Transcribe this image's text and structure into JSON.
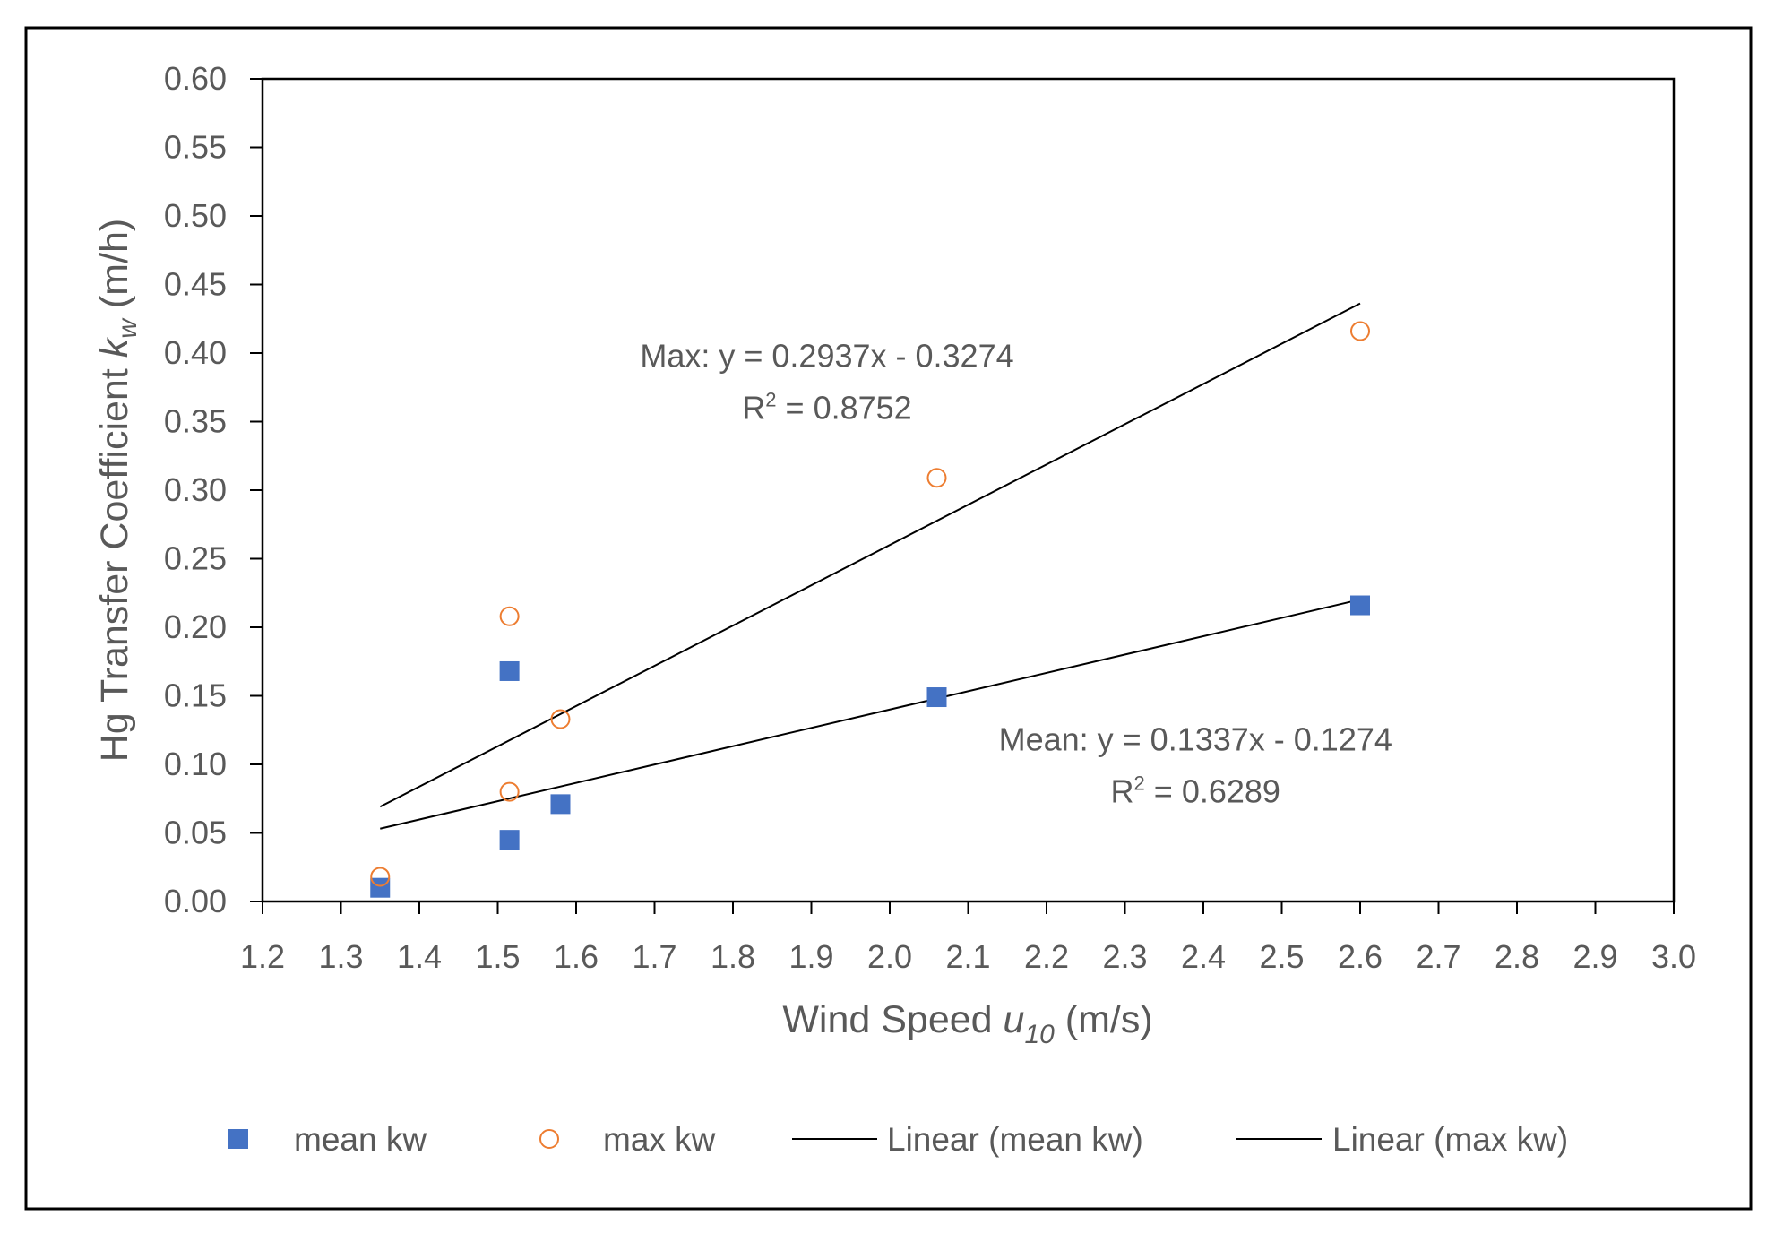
{
  "chart_data": {
    "type": "scatter",
    "title": "",
    "xlabel": {
      "main": "Wind Speed ",
      "var": "u",
      "sub": "10",
      "unit": " (m/s)"
    },
    "ylabel": {
      "main": "Hg Transfer Coefficient ",
      "var": "k",
      "sub": "w",
      "unit": " (m/h)"
    },
    "xlim": [
      1.2,
      3.0
    ],
    "ylim": [
      0.0,
      0.6
    ],
    "x_ticks": [
      "1.2",
      "1.3",
      "1.4",
      "1.5",
      "1.6",
      "1.7",
      "1.8",
      "1.9",
      "2.0",
      "2.1",
      "2.2",
      "2.3",
      "2.4",
      "2.5",
      "2.6",
      "2.7",
      "2.8",
      "2.9",
      "3.0"
    ],
    "y_ticks": [
      "0.00",
      "0.05",
      "0.10",
      "0.15",
      "0.20",
      "0.25",
      "0.30",
      "0.35",
      "0.40",
      "0.45",
      "0.50",
      "0.55",
      "0.60"
    ],
    "grid": false,
    "legend_position": "bottom",
    "series": [
      {
        "name": "mean kw",
        "marker": "square",
        "color": "#4472C4",
        "x": [
          1.35,
          1.515,
          1.515,
          1.58,
          2.06,
          2.6
        ],
        "y": [
          0.01,
          0.168,
          0.045,
          0.071,
          0.149,
          0.216
        ]
      },
      {
        "name": "max kw",
        "marker": "circle-open",
        "color": "#ED7D31",
        "x": [
          1.35,
          1.515,
          1.515,
          1.58,
          2.06,
          2.6
        ],
        "y": [
          0.018,
          0.208,
          0.08,
          0.133,
          0.309,
          0.416
        ]
      }
    ],
    "trendlines": [
      {
        "name": "Linear (mean kw)",
        "color": "#000000",
        "slope": 0.1337,
        "intercept": -0.1274,
        "x_range": [
          1.35,
          2.6
        ],
        "equation": "Mean: y = 0.1337x  - 0.1274",
        "r2_label": "R",
        "r2_sup": "2",
        "r2_value": " = 0.6289",
        "label_anchor": [
          2.39,
          0.11
        ]
      },
      {
        "name": "Linear (max kw)",
        "color": "#000000",
        "slope": 0.2937,
        "intercept": -0.3274,
        "x_range": [
          1.35,
          2.6
        ],
        "equation": "Max: y = 0.2937x  - 0.3274",
        "r2_label": "R",
        "r2_sup": "2",
        "r2_value": " = 0.8752",
        "label_anchor": [
          1.92,
          0.39
        ]
      }
    ],
    "legend": [
      {
        "label": "mean kw",
        "kind": "square",
        "color": "#4472C4"
      },
      {
        "label": "max kw",
        "kind": "circle-open",
        "color": "#ED7D31"
      },
      {
        "label": "Linear (mean kw)",
        "kind": "line",
        "color": "#000000"
      },
      {
        "label": "Linear (max kw)",
        "kind": "line",
        "color": "#000000"
      }
    ]
  }
}
